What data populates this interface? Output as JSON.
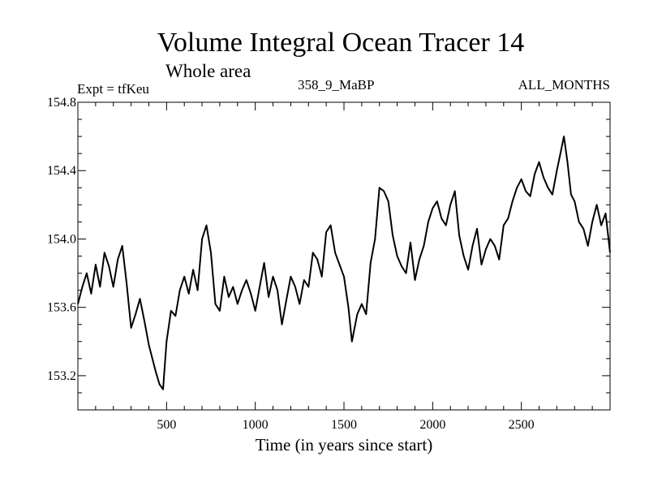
{
  "header": {
    "title": "Volume Integral Ocean Tracer 14",
    "subtitle": "Whole area",
    "experiment": "Expt = tfKeu",
    "period": "358_9_MaBP",
    "months": "ALL_MONTHS"
  },
  "chart_data": {
    "type": "line",
    "title": "Volume Integral Ocean Tracer 14",
    "subtitle": "Whole area",
    "xlabel": "Time (in years since start)",
    "ylabel": "",
    "xlim": [
      0,
      3000
    ],
    "ylim": [
      153.0,
      154.8
    ],
    "x_ticks": [
      500,
      1000,
      1500,
      2000,
      2500
    ],
    "y_ticks": [
      153.2,
      153.6,
      154.0,
      154.4,
      154.8
    ],
    "y_tick_labels": [
      "153.2",
      "153.6",
      "154.0",
      "154.4",
      "154.8"
    ],
    "grid": false,
    "series": [
      {
        "color": "#000000",
        "x": [
          0,
          25,
          50,
          75,
          100,
          125,
          150,
          175,
          200,
          225,
          250,
          275,
          300,
          325,
          350,
          375,
          400,
          425,
          440,
          460,
          480,
          500,
          525,
          550,
          575,
          600,
          625,
          650,
          675,
          700,
          725,
          750,
          775,
          800,
          825,
          850,
          875,
          900,
          925,
          950,
          975,
          1000,
          1025,
          1050,
          1075,
          1100,
          1125,
          1150,
          1175,
          1200,
          1225,
          1250,
          1275,
          1300,
          1325,
          1350,
          1375,
          1400,
          1425,
          1450,
          1475,
          1500,
          1525,
          1545,
          1575,
          1600,
          1625,
          1650,
          1675,
          1700,
          1725,
          1750,
          1775,
          1800,
          1825,
          1850,
          1875,
          1900,
          1925,
          1950,
          1975,
          2000,
          2025,
          2050,
          2075,
          2100,
          2125,
          2150,
          2175,
          2200,
          2225,
          2250,
          2275,
          2300,
          2325,
          2350,
          2375,
          2400,
          2425,
          2450,
          2475,
          2500,
          2525,
          2550,
          2575,
          2600,
          2625,
          2650,
          2675,
          2700,
          2720,
          2740,
          2760,
          2780,
          2800,
          2825,
          2850,
          2875,
          2900,
          2925,
          2950,
          2975,
          3000
        ],
        "values": [
          153.62,
          153.72,
          153.8,
          153.68,
          153.85,
          153.72,
          153.92,
          153.84,
          153.72,
          153.88,
          153.96,
          153.74,
          153.48,
          153.56,
          153.65,
          153.52,
          153.38,
          153.28,
          153.22,
          153.15,
          153.12,
          153.4,
          153.58,
          153.55,
          153.7,
          153.78,
          153.68,
          153.82,
          153.7,
          154.0,
          154.08,
          153.92,
          153.62,
          153.58,
          153.78,
          153.66,
          153.72,
          153.62,
          153.7,
          153.76,
          153.68,
          153.58,
          153.72,
          153.86,
          153.66,
          153.78,
          153.7,
          153.5,
          153.64,
          153.78,
          153.72,
          153.62,
          153.76,
          153.72,
          153.92,
          153.88,
          153.78,
          154.04,
          154.08,
          153.92,
          153.85,
          153.78,
          153.6,
          153.4,
          153.56,
          153.62,
          153.56,
          153.86,
          154.0,
          154.3,
          154.28,
          154.22,
          154.02,
          153.9,
          153.84,
          153.8,
          153.98,
          153.76,
          153.88,
          153.96,
          154.1,
          154.18,
          154.22,
          154.12,
          154.08,
          154.2,
          154.28,
          154.02,
          153.9,
          153.82,
          153.96,
          154.06,
          153.85,
          153.94,
          154.0,
          153.96,
          153.88,
          154.08,
          154.12,
          154.22,
          154.3,
          154.35,
          154.28,
          154.25,
          154.38,
          154.45,
          154.36,
          154.3,
          154.26,
          154.4,
          154.5,
          154.6,
          154.45,
          154.26,
          154.22,
          154.1,
          154.06,
          153.96,
          154.1,
          154.2,
          154.08,
          154.15,
          153.92
        ]
      }
    ]
  }
}
